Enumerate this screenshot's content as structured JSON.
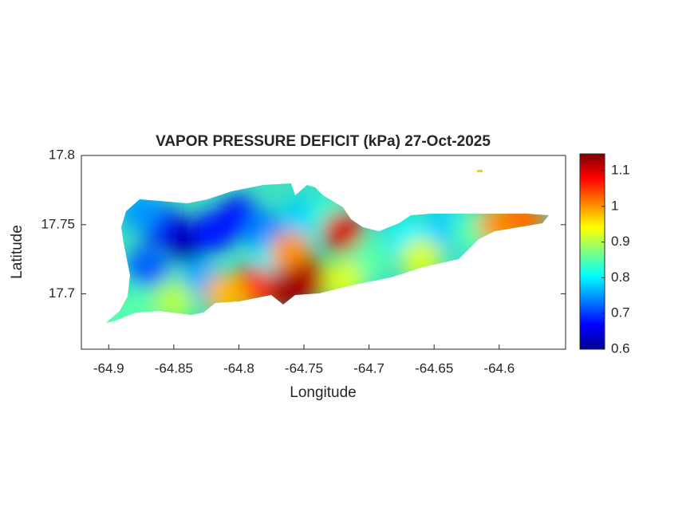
{
  "chart_data": {
    "type": "contour-map",
    "title": "VAPOR PRESSURE DEFICIT (kPa) 27-Oct-2025",
    "x_label": "Longitude",
    "y_label": "Latitude",
    "xlim": [
      -64.921,
      -64.549
    ],
    "ylim": [
      17.66,
      17.8
    ],
    "xticks": [
      -64.9,
      -64.85,
      -64.8,
      -64.75,
      -64.7,
      -64.65,
      -64.6
    ],
    "yticks": [
      17.7,
      17.75,
      17.8
    ],
    "colormap": "jet",
    "clim": [
      0.6,
      1.147
    ],
    "cticks": [
      0.6,
      0.7,
      0.8,
      0.9,
      1,
      1.1
    ],
    "x": [
      -64.84,
      -64.86,
      -64.8,
      -64.82,
      -64.87,
      -64.83,
      -64.78,
      -64.75,
      -64.73,
      -64.77,
      -64.76,
      -64.745,
      -64.765,
      -64.79,
      -64.81,
      -64.85,
      -64.88,
      -64.895,
      -64.72,
      -64.7,
      -64.67,
      -64.64,
      -64.62,
      -64.66,
      -64.6,
      -64.58,
      -64.875,
      -64.72
    ],
    "y": [
      17.738,
      17.75,
      17.755,
      17.745,
      17.72,
      17.71,
      17.745,
      17.755,
      17.755,
      17.725,
      17.73,
      17.71,
      17.703,
      17.705,
      17.7,
      17.695,
      17.69,
      17.68,
      17.745,
      17.725,
      17.74,
      17.748,
      17.745,
      17.725,
      17.75,
      17.755,
      17.76,
      17.71
    ],
    "values": [
      0.62,
      0.66,
      0.67,
      0.68,
      0.72,
      0.76,
      0.74,
      0.78,
      0.83,
      0.8,
      1.0,
      1.12,
      1.13,
      1.05,
      0.98,
      0.9,
      0.85,
      0.85,
      1.1,
      0.85,
      0.8,
      0.78,
      0.85,
      0.92,
      1.0,
      1.02,
      0.75,
      0.92
    ]
  }
}
